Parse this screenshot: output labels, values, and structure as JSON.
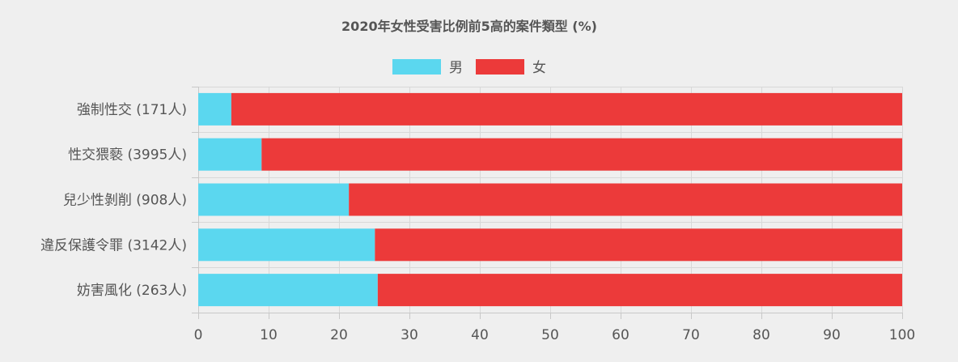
{
  "chart_data": {
    "type": "bar",
    "orientation": "horizontal",
    "stacked": true,
    "title": "2020年女性受害比例前5高的案件類型 (%)",
    "categories": [
      "強制性交 (171人)",
      "性交猥褻 (3995人)",
      "兒少性剝削 (908人)",
      "違反保護令罪 (3142人)",
      "妨害風化 (263人)"
    ],
    "series": [
      {
        "name": "男",
        "color": "#5bd7ef",
        "values": [
          4.7,
          9.0,
          21.4,
          25.1,
          25.5
        ]
      },
      {
        "name": "女",
        "color": "#ec3a3a",
        "values": [
          95.3,
          91.0,
          78.6,
          74.9,
          74.5
        ]
      }
    ],
    "xlim": [
      0,
      100
    ],
    "xticks": [
      0,
      10,
      20,
      30,
      40,
      50,
      60,
      70,
      80,
      90,
      100
    ],
    "grid": true,
    "legend_position": "top-center"
  }
}
